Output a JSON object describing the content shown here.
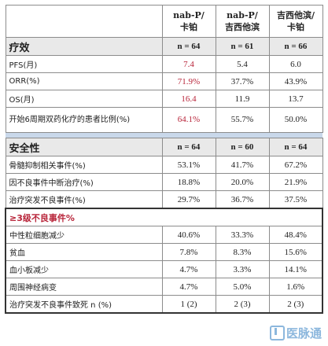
{
  "header": {
    "col2": "nab-P/\n卡铂",
    "col3": "nab-P/\n吉西他滨",
    "col4": "吉西他滨/\n卡铂"
  },
  "efficacy": {
    "title": "疗效",
    "n": [
      "n = 64",
      "n = 61",
      "n = 66"
    ],
    "rows": [
      {
        "label": "PFS(月)",
        "v": [
          "7.4",
          "5.4",
          "6.0"
        ]
      },
      {
        "label": "ORR(%)",
        "v": [
          "71.9%",
          "37.7%",
          "43.9%"
        ]
      },
      {
        "label": "OS(月)",
        "v": [
          "16.4",
          "11.9",
          "13.7"
        ]
      },
      {
        "label": "开始6周期双药化疗的患者比例(%)",
        "v": [
          "64.1%",
          "55.7%",
          "50.0%"
        ]
      }
    ]
  },
  "safety": {
    "title": "安全性",
    "n": [
      "n = 64",
      "n = 60",
      "n = 64"
    ],
    "rows": [
      {
        "label": "骨髓抑制相关事件(%)",
        "v": [
          "53.1%",
          "41.7%",
          "67.2%"
        ]
      },
      {
        "label": "因不良事件中断治疗(%)",
        "v": [
          "18.8%",
          "20.0%",
          "21.9%"
        ]
      },
      {
        "label": "治疗突发不良事件(%)",
        "v": [
          "29.7%",
          "36.7%",
          "37.5%"
        ]
      }
    ]
  },
  "grade3": {
    "title": "≥3级不良事件%",
    "rows": [
      {
        "label": "中性粒细胞减少",
        "v": [
          "40.6%",
          "33.3%",
          "48.4%"
        ]
      },
      {
        "label": "贫血",
        "v": [
          "7.8%",
          "8.3%",
          "15.6%"
        ]
      },
      {
        "label": "血小板减少",
        "v": [
          "4.7%",
          "3.3%",
          "14.1%"
        ]
      },
      {
        "label": "周围神经病变",
        "v": [
          "4.7%",
          "5.0%",
          "1.6%"
        ]
      },
      {
        "label": "治疗突发不良事件致死 n (%)",
        "v": [
          "1 (2)",
          "2 (3)",
          "2 (3)"
        ]
      }
    ]
  },
  "watermark": {
    "text": "医脉通",
    "icon": "logo-icon"
  },
  "colors": {
    "highlight": "#b8253a",
    "separator": "#c9d8ea",
    "section_bg": "#e9e9e9"
  }
}
